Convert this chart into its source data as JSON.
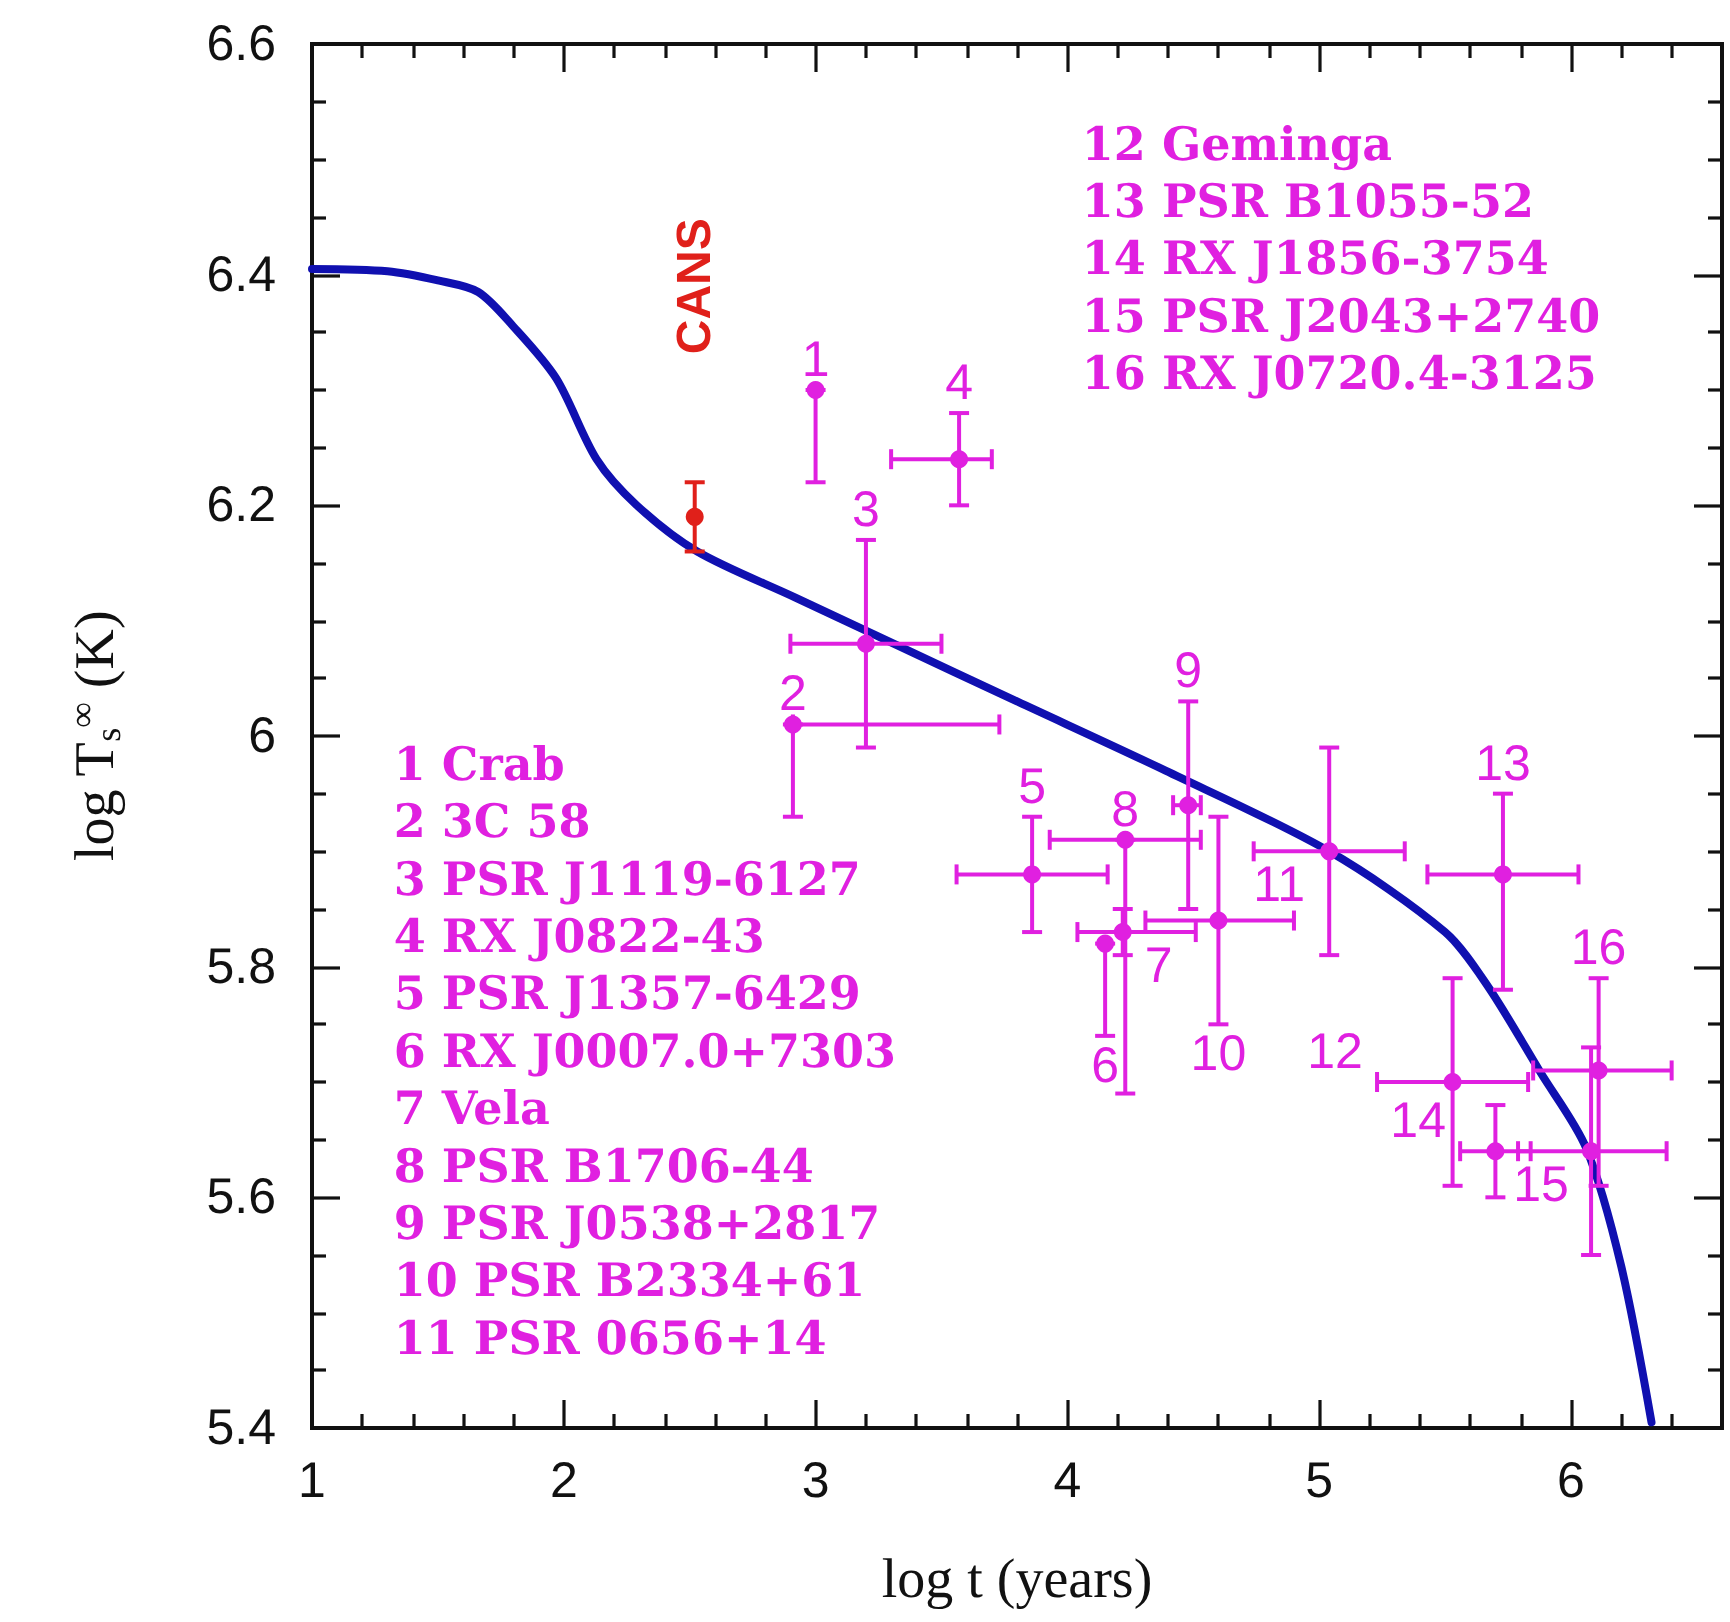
{
  "chart_data": {
    "type": "scatter",
    "xlabel": "log t (years)",
    "ylabel": "log T$_{s}$$^{∞}$ (K)",
    "xlim": [
      1,
      6.6
    ],
    "ylim": [
      5.4,
      6.6
    ],
    "xticks": [
      1,
      {
        "value": 1.2,
        "label": null
      },
      {
        "value": 1.4,
        "label": null
      },
      {
        "value": 1.6,
        "label": null
      },
      {
        "value": 1.8,
        "label": null
      },
      2,
      {
        "value": 2.2,
        "label": null
      },
      {
        "value": 2.4,
        "label": null
      },
      {
        "value": 2.6,
        "label": null
      },
      {
        "value": 2.8,
        "label": null
      },
      3,
      {
        "value": 3.2,
        "label": null
      },
      {
        "value": 3.4,
        "label": null
      },
      {
        "value": 3.6,
        "label": null
      },
      {
        "value": 3.8,
        "label": null
      },
      4,
      {
        "value": 4.2,
        "label": null
      },
      {
        "value": 4.4,
        "label": null
      },
      {
        "value": 4.6,
        "label": null
      },
      {
        "value": 4.8,
        "label": null
      },
      5,
      {
        "value": 5.2,
        "label": null
      },
      {
        "value": 5.4,
        "label": null
      },
      {
        "value": 5.6,
        "label": null
      },
      {
        "value": 5.8,
        "label": null
      },
      6,
      {
        "value": 6.2,
        "label": null
      },
      {
        "value": 6.4,
        "label": null
      }
    ],
    "yticks": [
      5.4,
      {
        "value": 5.45,
        "label": null
      },
      {
        "value": 5.5,
        "label": null
      },
      {
        "value": 5.55,
        "label": null
      },
      5.6,
      {
        "value": 5.65,
        "label": null
      },
      {
        "value": 5.7,
        "label": null
      },
      {
        "value": 5.75,
        "label": null
      },
      5.8,
      {
        "value": 5.85,
        "label": null
      },
      {
        "value": 5.9,
        "label": null
      },
      {
        "value": 5.95,
        "label": null
      },
      6,
      {
        "value": 6.05,
        "label": null
      },
      {
        "value": 6.1,
        "label": null
      },
      {
        "value": 6.15,
        "label": null
      },
      6.2,
      {
        "value": 6.25,
        "label": null
      },
      {
        "value": 6.3,
        "label": null
      },
      {
        "value": 6.35,
        "label": null
      },
      6.4,
      {
        "value": 6.45,
        "label": null
      },
      {
        "value": 6.5,
        "label": null
      },
      {
        "value": 6.55,
        "label": null
      },
      6.6
    ],
    "marker": "circle",
    "series": [
      {
        "type": "line",
        "marker": "none",
        "color": "#1010b0",
        "x": [
          1,
          1.3,
          1.5,
          1.66,
          1.8,
          1.97,
          2.13,
          2.29,
          2.53,
          2.92,
          3.31,
          3.8,
          4.39,
          5.04,
          5.5,
          5.67,
          5.88,
          6.06,
          6.2,
          6.32
        ],
        "values": [
          6.405,
          6.403,
          6.395,
          6.385,
          6.355,
          6.31,
          6.24,
          6.2,
          6.16,
          6.12,
          6.08,
          6.03,
          5.97,
          5.9,
          5.83,
          5.783,
          5.708,
          5.643,
          5.54,
          5.405
        ]
      },
      {
        "name": "CANS",
        "color": "#e0201a",
        "x": [
          2.52
        ],
        "values": [
          6.19
        ],
        "errors": [
          [
            6.16,
            6.22
          ]
        ]
      },
      {
        "color": "#e020e0",
        "x": [
          3.0,
          2.91,
          3.2,
          3.57,
          3.86,
          4.15,
          4.22,
          4.23,
          4.48,
          4.6,
          5.04,
          5.53,
          5.73,
          5.7,
          6.08,
          6.11
        ],
        "values": [
          6.3,
          6.01,
          6.08,
          6.24,
          5.88,
          5.82,
          5.83,
          5.91,
          5.94,
          5.84,
          5.9,
          5.7,
          5.88,
          5.64,
          5.64,
          5.71
        ],
        "errors": [
          [
            6.22,
            6.3
          ],
          [
            5.93,
            6.01
          ],
          [
            5.99,
            6.17
          ],
          [
            6.2,
            6.28
          ],
          [
            5.83,
            5.93
          ],
          [
            5.74,
            5.82
          ],
          [
            5.81,
            5.85
          ],
          [
            5.69,
            5.91
          ],
          [
            5.85,
            6.03
          ],
          [
            5.75,
            5.93
          ],
          [
            5.81,
            5.99
          ],
          [
            5.61,
            5.79
          ],
          [
            5.78,
            5.95
          ],
          [
            5.6,
            5.68
          ],
          [
            5.55,
            5.73
          ],
          [
            5.61,
            5.79
          ]
        ],
        "xerrors": [
          null,
          [
            2.91,
            3.73
          ],
          [
            2.9,
            3.5
          ],
          [
            3.3,
            3.7
          ],
          [
            3.56,
            4.16
          ],
          null,
          [
            4.04,
            4.51
          ],
          [
            3.93,
            4.53
          ],
          [
            4.42,
            4.53
          ],
          [
            4.31,
            4.9
          ],
          [
            4.74,
            5.34
          ],
          [
            5.23,
            5.83
          ],
          [
            5.43,
            6.03
          ],
          [
            5.56,
            5.84
          ],
          [
            5.79,
            6.38
          ],
          [
            5.85,
            6.4
          ]
        ]
      }
    ],
    "annotations": [
      {
        "text": "1",
        "x": 3.0,
        "y": 6.3
      },
      {
        "text": "2",
        "x": 2.91,
        "y": 6.01
      },
      {
        "text": "3",
        "x": 3.2,
        "y": 6.08
      },
      {
        "text": "4",
        "x": 3.57,
        "y": 6.24
      },
      {
        "text": "5",
        "x": 3.86,
        "y": 5.88
      },
      {
        "text": "6",
        "x": 4.15,
        "y": 5.82
      },
      {
        "text": "7",
        "x": 4.22,
        "y": 5.83
      },
      {
        "text": "8",
        "x": 4.23,
        "y": 5.91
      },
      {
        "text": "9",
        "x": 4.48,
        "y": 5.94
      },
      {
        "text": "10",
        "x": 4.6,
        "y": 5.84
      },
      {
        "text": "11",
        "x": 5.04,
        "y": 5.9
      },
      {
        "text": "12",
        "x": 5.53,
        "y": 5.7
      },
      {
        "text": "13",
        "x": 5.73,
        "y": 5.88
      },
      {
        "text": "14",
        "x": 5.7,
        "y": 5.64
      },
      {
        "text": "15",
        "x": 6.08,
        "y": 5.64
      },
      {
        "text": "16",
        "x": 6.11,
        "y": 5.71
      },
      "1 Crab\n2 3C 58\n3 PSR J1119-6127\n4 RX J0822-43\n5 PSR J1357-6429\n6 RX J0007.0+7303\n7 Vela\n8 PSR B1706-44\n9 PSR J0538+2817\n10 PSR B2334+61\n11 PSR 0656+14",
      "12 Geminga\n13 PSR B1055-52\n14 RX J1856-3754\n15 PSR J2043+2740\n16 RX J0720.4-3125"
    ]
  }
}
